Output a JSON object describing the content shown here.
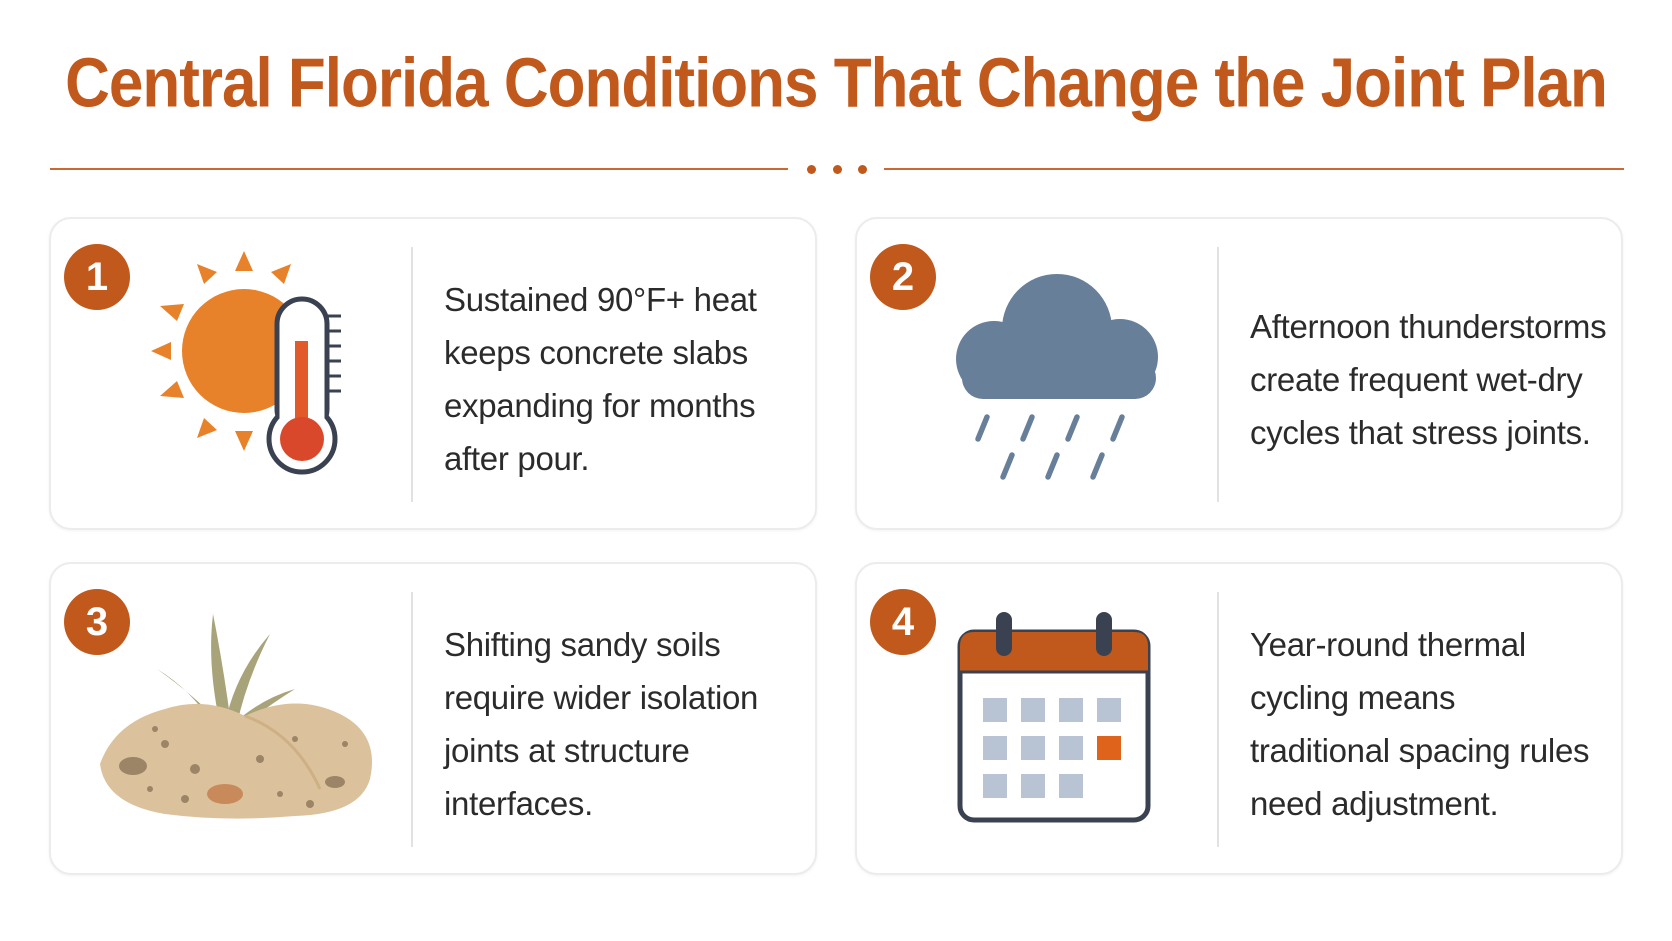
{
  "title": "Central Florida Conditions That Change the Joint Plan",
  "colors": {
    "accent": "#c0591b",
    "sun": "#e8822a",
    "cloud": "#687f9a",
    "soil": "#dcc29c",
    "calendar_cells": "#b8c3d3",
    "text": "#2b2b2b"
  },
  "cards": [
    {
      "number": "1",
      "icon": "sun-thermometer-icon",
      "text": "Sustained 90°F+ heat keeps concrete slabs expanding for months after pour."
    },
    {
      "number": "2",
      "icon": "rain-cloud-icon",
      "text": "Afternoon thunderstorms create frequent wet-dry cycles that stress joints."
    },
    {
      "number": "3",
      "icon": "sandy-soil-icon",
      "text": "Shifting sandy soils require wider isolation joints at structure interfaces."
    },
    {
      "number": "4",
      "icon": "calendar-icon",
      "text": "Year-round thermal cycling means traditional spacing rules need adjustment."
    }
  ]
}
